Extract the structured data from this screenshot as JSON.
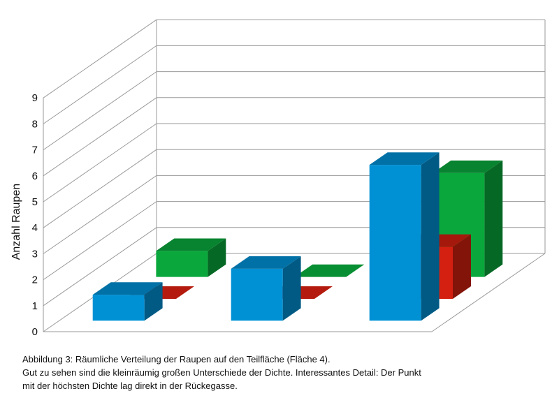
{
  "chart_data": {
    "type": "bar",
    "style": "3d-depth",
    "ylabel": "Anzahl Raupen",
    "ylim": [
      0,
      9
    ],
    "yticks": [
      "0",
      "1",
      "2",
      "3",
      "4",
      "5",
      "6",
      "7",
      "8",
      "9"
    ],
    "grid": true,
    "legend": "none",
    "categories": [
      "",
      "",
      ""
    ],
    "series": [
      {
        "color": "#0091d5",
        "values": [
          1,
          2,
          6
        ]
      },
      {
        "color": "#d42010",
        "values": [
          0,
          0,
          2
        ]
      },
      {
        "color": "#0aa83c",
        "values": [
          1,
          0,
          4
        ]
      }
    ]
  },
  "caption": {
    "line1": "Abbildung 3: Räumliche Verteilung der Raupen auf den Teilfläche (Fläche 4).",
    "line2": "Gut zu sehen sind die kleinräumig großen Unterschiede der Dichte. Interessantes Detail: Der Punkt",
    "line3": "mit der höchsten Dichte lag direkt in der Rückegasse."
  }
}
